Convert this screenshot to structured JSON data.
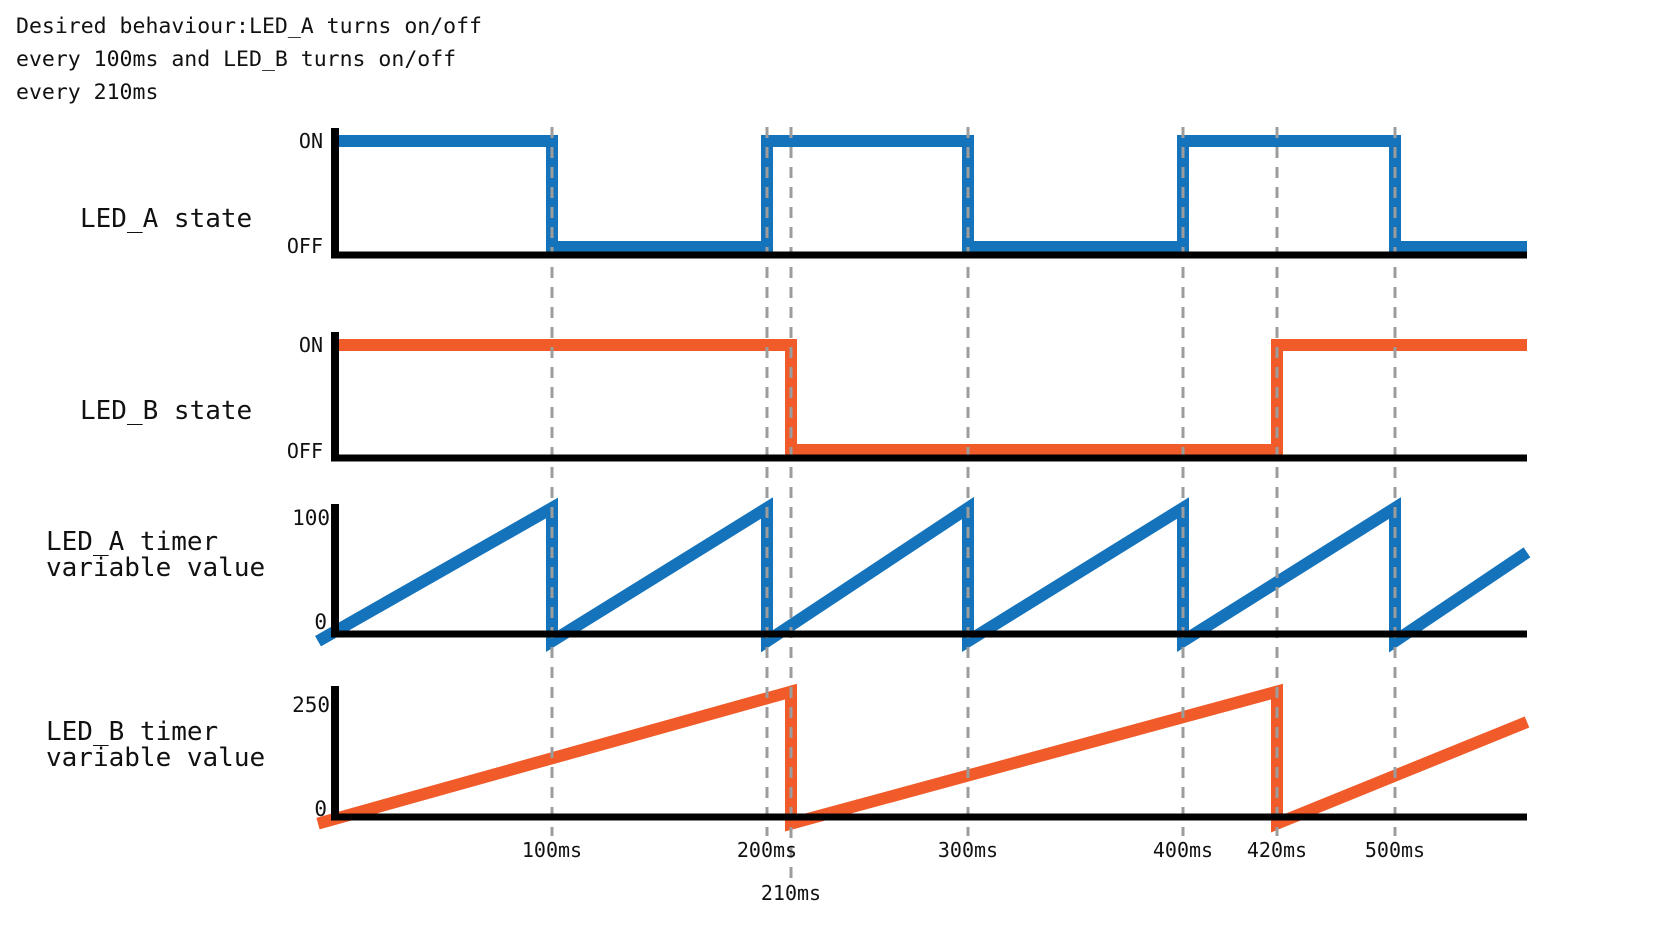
{
  "header": {
    "line1": "Desired  behaviour:LED_A turns on/off",
    "line2": "every 100ms and LED_B turns on/off",
    "line3": "every 210ms"
  },
  "colors": {
    "led_a": "#1473bb",
    "led_b": "#f15b2a",
    "axis": "#000000",
    "gridline": "#9c9c9c"
  },
  "time_axis": {
    "unit": "ms",
    "range_ms": [
      0,
      562
    ],
    "gridline_times_ms": [
      100,
      200,
      210,
      300,
      400,
      420,
      500
    ],
    "tick_labels": [
      "100ms",
      "200ms",
      "300ms",
      "400ms",
      "420ms",
      "500ms"
    ],
    "tick_times_ms": [
      100,
      200,
      300,
      400,
      420,
      500
    ],
    "below_label": "210ms",
    "below_label_time_ms": 210,
    "grid": "dashed-vertical"
  },
  "chart_data": [
    {
      "type": "step",
      "title": "LED_A state",
      "color": "led_a",
      "y_tick_labels": [
        "ON",
        "OFF"
      ],
      "initial_state": "ON",
      "toggle_period_ms": 100,
      "toggle_times_ms": [
        100,
        200,
        300,
        400,
        500
      ],
      "points": [
        [
          0,
          1
        ],
        [
          100,
          1
        ],
        [
          100,
          0
        ],
        [
          200,
          0
        ],
        [
          200,
          1
        ],
        [
          300,
          1
        ],
        [
          300,
          0
        ],
        [
          400,
          0
        ],
        [
          400,
          1
        ],
        [
          500,
          1
        ],
        [
          500,
          0
        ],
        [
          562,
          0
        ]
      ]
    },
    {
      "type": "step",
      "title": "LED_B state",
      "color": "led_b",
      "y_tick_labels": [
        "ON",
        "OFF"
      ],
      "initial_state": "ON",
      "toggle_period_ms": 210,
      "toggle_times_ms": [
        210,
        420
      ],
      "points": [
        [
          0,
          1
        ],
        [
          210,
          1
        ],
        [
          210,
          0
        ],
        [
          420,
          0
        ],
        [
          420,
          1
        ],
        [
          562,
          1
        ]
      ]
    },
    {
      "type": "sawtooth",
      "title": "LED_A timer variable value",
      "title_lines": [
        "LED_A timer",
        "variable value"
      ],
      "color": "led_a",
      "y_tick_labels": [
        "100",
        "0"
      ],
      "ylim": [
        0,
        100
      ],
      "reset_period_ms": 100,
      "reset_times_ms": [
        100,
        200,
        300,
        400,
        500
      ],
      "peak_value": 100,
      "points": [
        [
          -8,
          -6
        ],
        [
          100,
          105
        ],
        [
          100,
          -6
        ],
        [
          200,
          105
        ],
        [
          200,
          -6
        ],
        [
          300,
          105
        ],
        [
          300,
          -6
        ],
        [
          400,
          105
        ],
        [
          400,
          -6
        ],
        [
          500,
          105
        ],
        [
          500,
          -6
        ],
        [
          562,
          68
        ]
      ]
    },
    {
      "type": "sawtooth",
      "title": "LED_B timer variable value",
      "title_lines": [
        "LED_B timer",
        "variable value"
      ],
      "color": "led_b",
      "y_tick_labels": [
        "250",
        "0"
      ],
      "ylim": [
        0,
        250
      ],
      "reset_period_ms": 210,
      "reset_times_ms": [
        210,
        420
      ],
      "peak_value": 250,
      "points": [
        [
          -8,
          -14
        ],
        [
          210,
          268
        ],
        [
          210,
          -14
        ],
        [
          420,
          268
        ],
        [
          420,
          -14
        ],
        [
          562,
          203
        ]
      ]
    }
  ]
}
